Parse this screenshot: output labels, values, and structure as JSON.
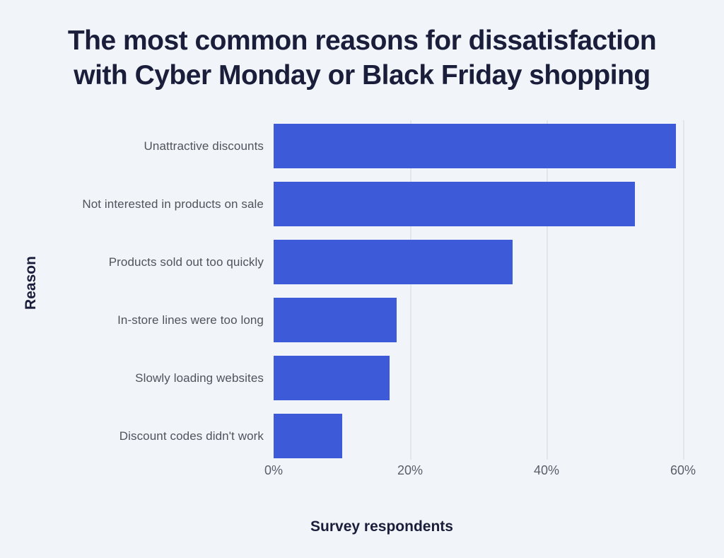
{
  "title": {
    "line1": "The most common reasons for dissatisfaction",
    "line2": "with Cyber Monday or Black Friday shopping"
  },
  "chart_data": {
    "type": "bar",
    "orientation": "horizontal",
    "title": "The most common reasons for dissatisfaction with Cyber Monday or Black Friday shopping",
    "categories": [
      "Unattractive discounts",
      "Not interested in products on sale",
      "Products sold out too quickly",
      "In-store lines were too long",
      "Slowly loading websites",
      "Discount codes didn't work"
    ],
    "values": [
      59,
      53,
      35,
      18,
      17,
      10
    ],
    "value_unit": "%",
    "xlabel": "Survey respondents",
    "ylabel": "Reason",
    "xlim": [
      0,
      64
    ],
    "xticks": [
      0,
      20,
      40,
      60
    ],
    "xtick_labels": [
      "0%",
      "20%",
      "40%",
      "60%"
    ],
    "grid": true,
    "legend": false,
    "colors": {
      "bar": "#3d5bd9",
      "background": "#f1f5fa",
      "title_text": "#1a1e3a",
      "category_label_text": "#4f545c",
      "tick_label_text": "#5a5e69",
      "gridline": "#e2e6ed"
    }
  }
}
